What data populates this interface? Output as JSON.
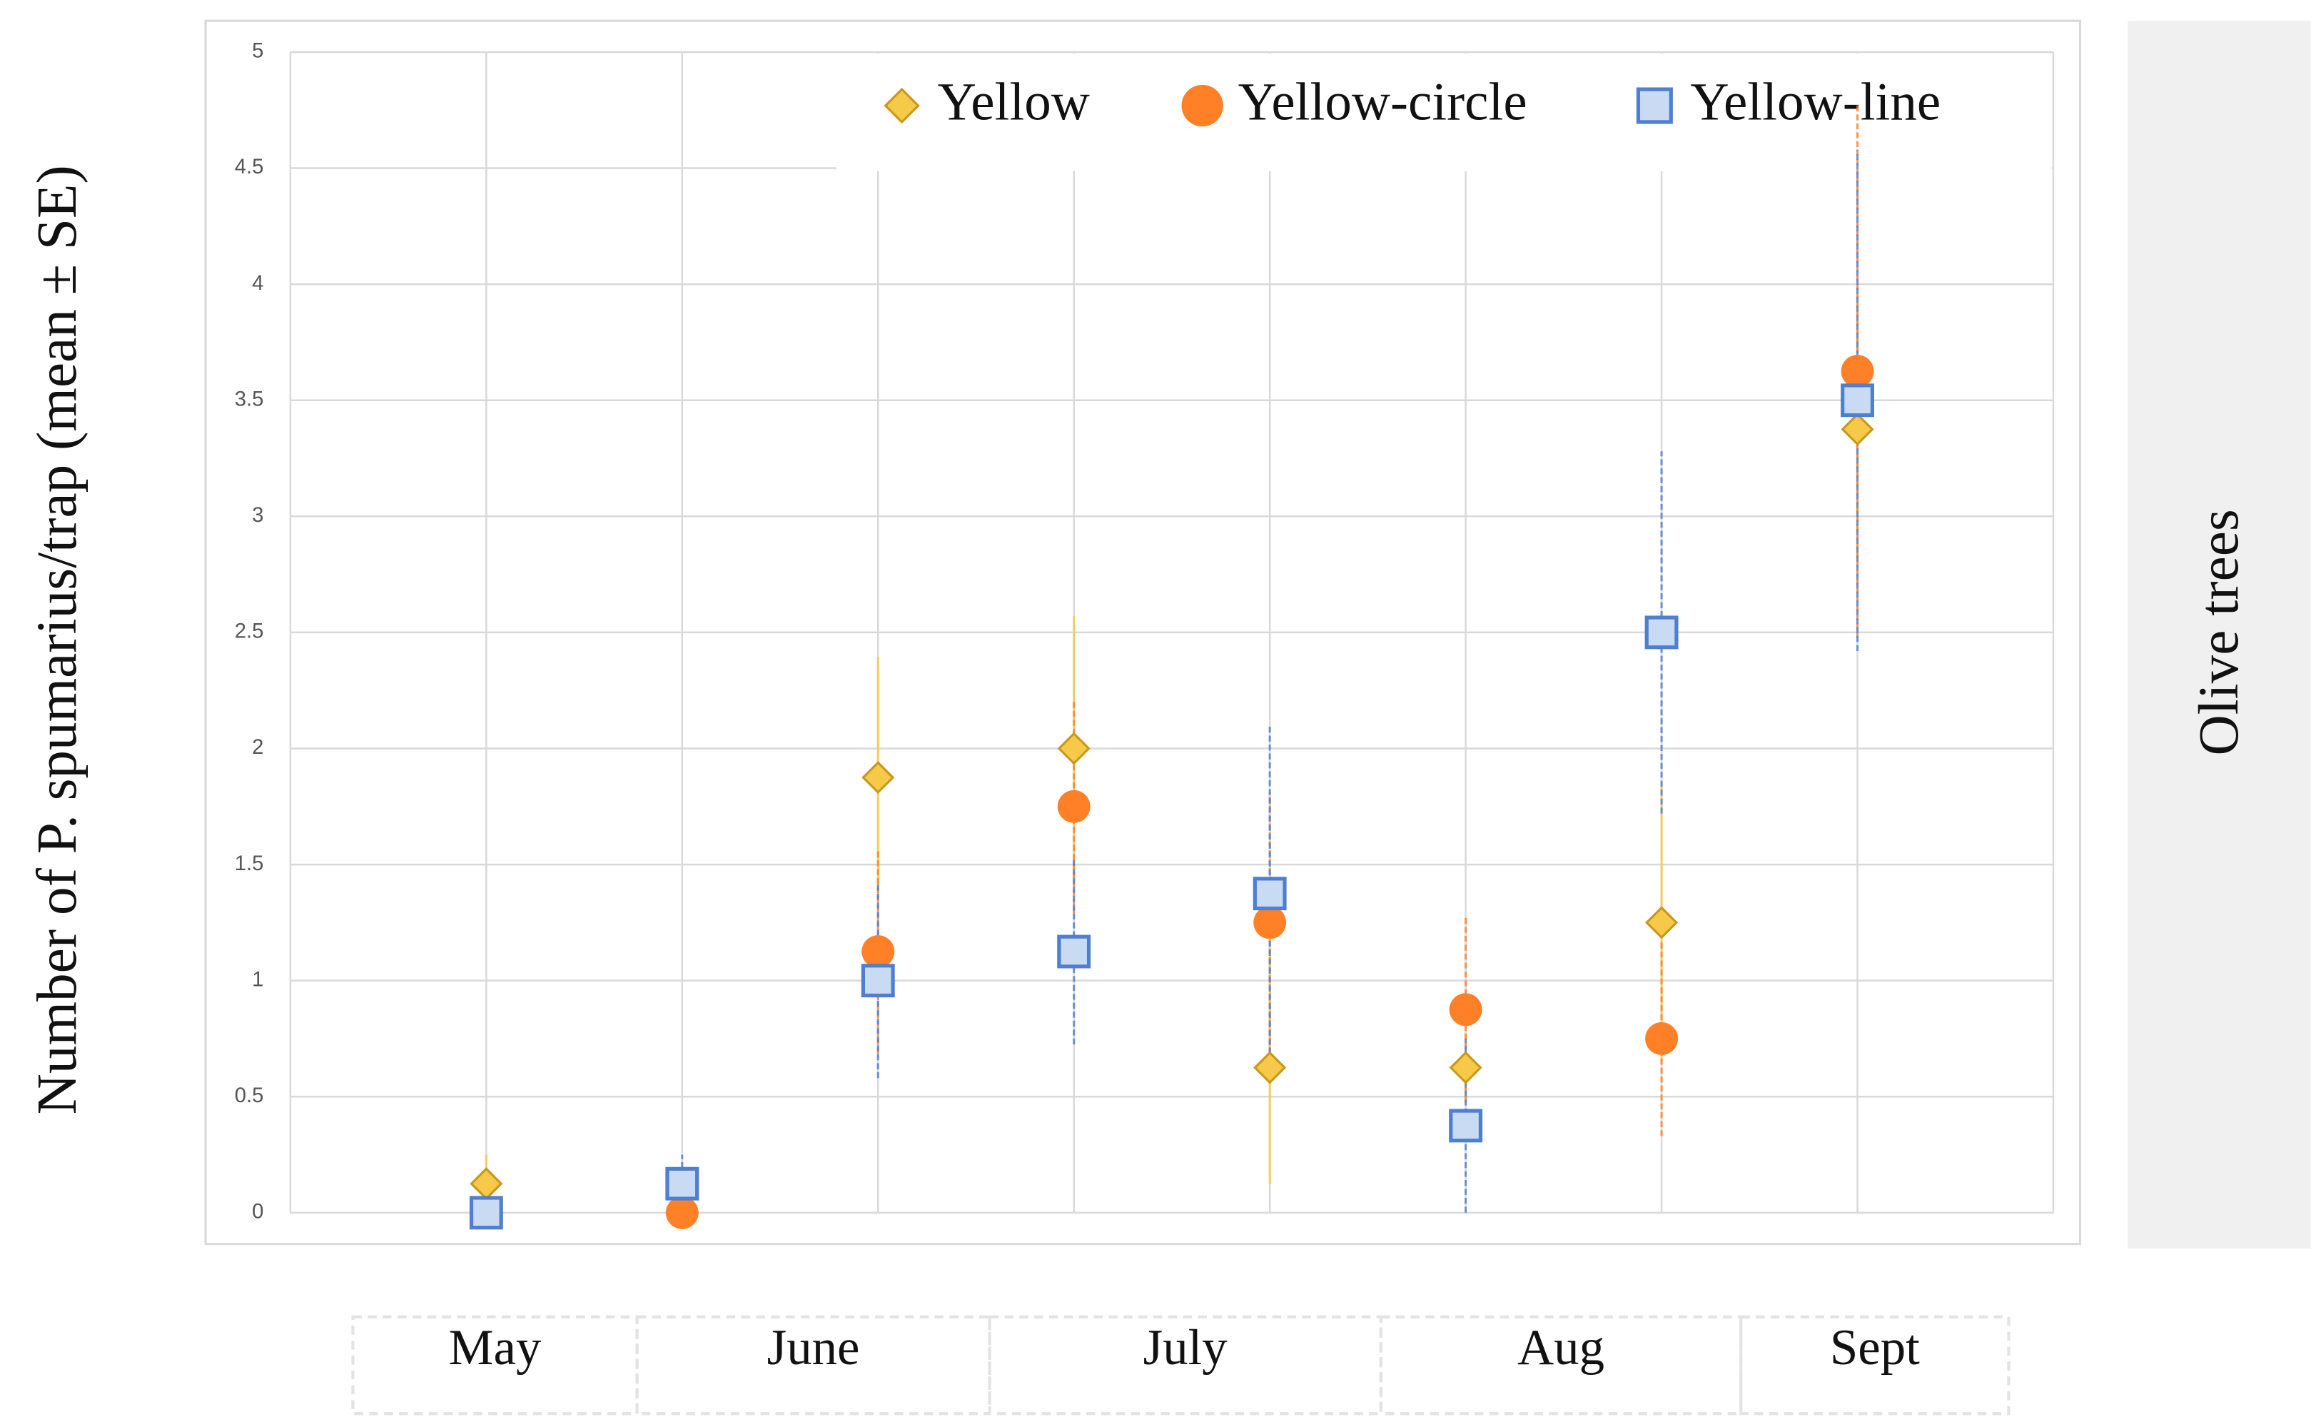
{
  "chart_data": {
    "type": "scatter",
    "ylabel": "Number of P. spumarius/trap (mean ± SE)",
    "side_label": "Olive trees",
    "categories": [
      null,
      null,
      null,
      null,
      null,
      null,
      null,
      null
    ],
    "months": [
      "May",
      "June",
      "July",
      "Aug",
      "Sept"
    ],
    "ylim": [
      0,
      5
    ],
    "yticks": [
      0,
      0.5,
      1,
      1.5,
      2,
      2.5,
      3,
      3.5,
      4,
      4.5,
      5
    ],
    "grid": true,
    "legend": "top-right",
    "series": [
      {
        "name": "Yellow",
        "marker": "diamond",
        "color": "#f7c948",
        "values": [
          0.125,
          0,
          1.875,
          2.0,
          0.625,
          0.625,
          1.25,
          3.375
        ],
        "errors": [
          0.125,
          0,
          0.52,
          0.57,
          0.5,
          0.15,
          0.6,
          0.57
        ]
      },
      {
        "name": "Yellow-circle",
        "marker": "circle",
        "color": "#ff8027",
        "values": [
          0,
          0,
          1.125,
          1.75,
          1.25,
          0.875,
          0.75,
          3.625
        ],
        "errors": [
          0,
          0,
          0.44,
          0.46,
          0.56,
          0.4,
          0.42,
          1.15
        ]
      },
      {
        "name": "Yellow-line",
        "marker": "square",
        "color": "#4f7fd0",
        "values": [
          0,
          0.125,
          1.0,
          1.125,
          1.375,
          0.375,
          2.5,
          3.5
        ],
        "errors": [
          0,
          0.125,
          0.42,
          0.4,
          0.73,
          0.375,
          0.78,
          1.08
        ]
      }
    ]
  }
}
